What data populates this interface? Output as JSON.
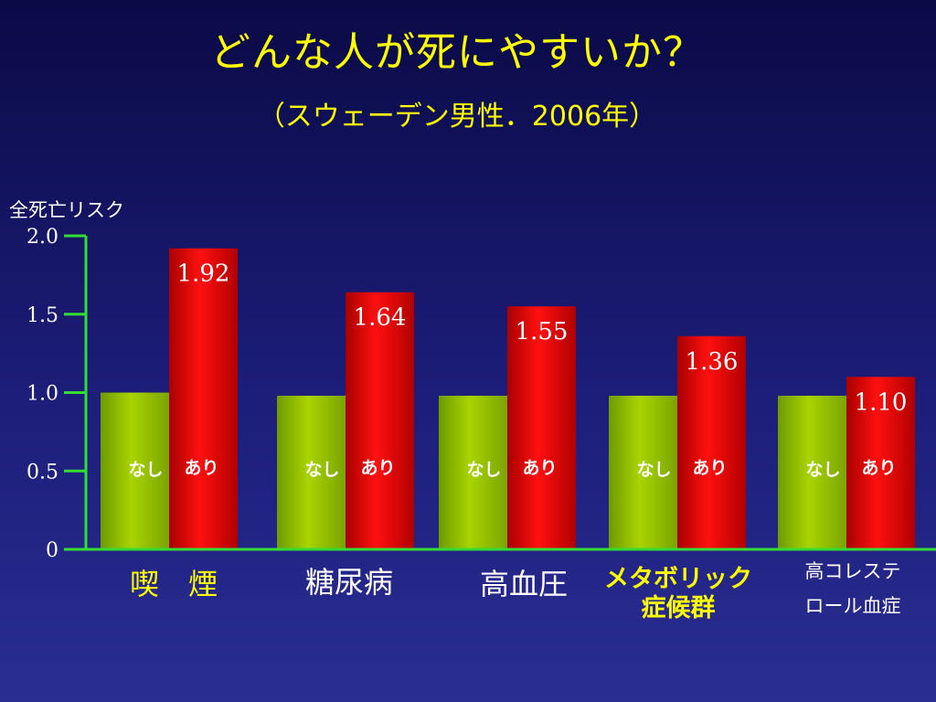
{
  "title": "どんな人が死にやすいか？",
  "subtitle": "（スウェーデン男性．2006年）",
  "colors": {
    "background": "#1c1d78",
    "axis": "#33dd33",
    "without_bar": "#8fc400",
    "with_bar": "#e00000",
    "title": "#ffff00"
  },
  "chart_data": {
    "type": "bar",
    "title": "どんな人が死にやすいか？",
    "subtitle": "（スウェーデン男性．2006年）",
    "ylabel": "全死亡リスク",
    "xlabel": "",
    "ylim": [
      0,
      2.0
    ],
    "yticks": [
      {
        "value": 0,
        "label": "0"
      },
      {
        "value": 0.5,
        "label": "0.5"
      },
      {
        "value": 1.0,
        "label": "1.0"
      },
      {
        "value": 1.5,
        "label": "1.5"
      },
      {
        "value": 2.0,
        "label": "2.0"
      }
    ],
    "categories": [
      "喫　煙",
      "糖尿病",
      "高血圧",
      "メタボリック症候群",
      "高コレステロール血症"
    ],
    "category_lines": [
      [
        "喫　煙"
      ],
      [
        "糖尿病"
      ],
      [
        "高血圧"
      ],
      [
        "メタボリック",
        "症候群"
      ],
      [
        "高コレステ",
        "ロール血症"
      ]
    ],
    "category_styles": [
      "yellow",
      "white",
      "white",
      "yellow-bold",
      "white-small"
    ],
    "series": [
      {
        "name": "なし",
        "values": [
          1.0,
          0.98,
          0.98,
          0.98,
          0.98
        ],
        "labels": [
          "なし",
          "なし",
          "なし",
          "なし",
          "なし"
        ]
      },
      {
        "name": "あり",
        "values": [
          1.92,
          1.64,
          1.55,
          1.36,
          1.1
        ],
        "labels": [
          "あり",
          "あり",
          "あり",
          "あり",
          "あり"
        ],
        "value_labels": [
          "1.92",
          "1.64",
          "1.55",
          "1.36",
          "1.10"
        ]
      }
    ],
    "grid": false,
    "legend": "none"
  }
}
